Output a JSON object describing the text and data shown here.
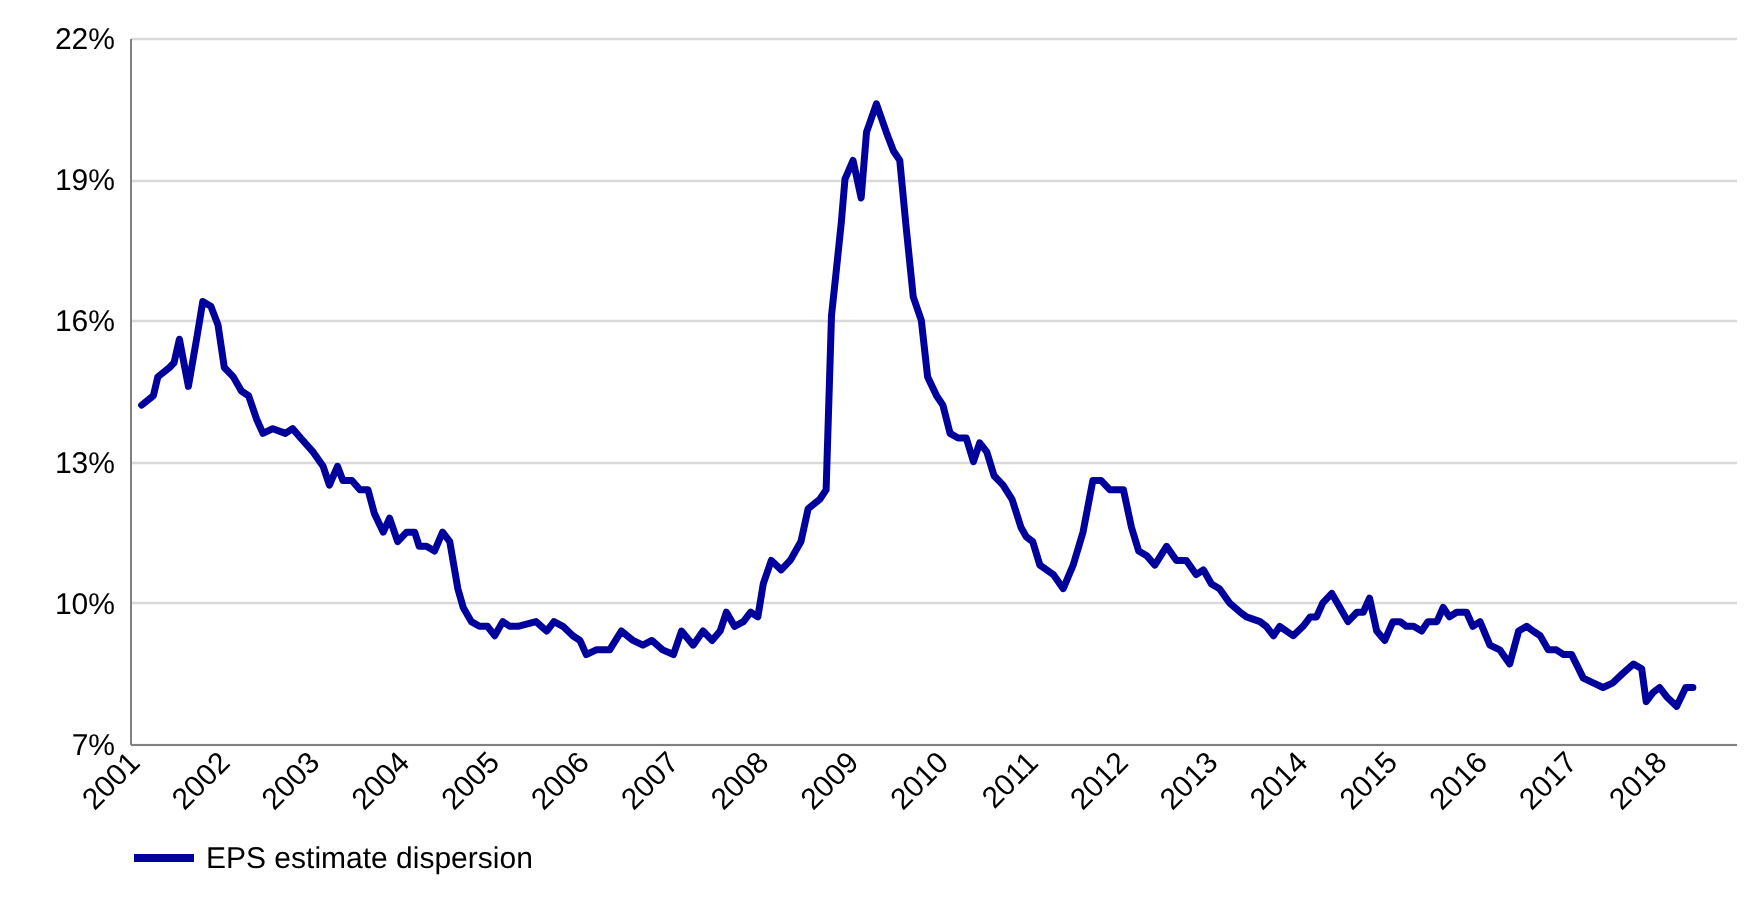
{
  "chart_data": {
    "type": "line",
    "x": [
      2001.09,
      2001.22,
      2001.27,
      2001.4,
      2001.45,
      2001.51,
      2001.61,
      2001.71,
      2001.77,
      2001.86,
      2001.94,
      2002.01,
      2002.11,
      2002.2,
      2002.28,
      2002.37,
      2002.44,
      2002.55,
      2002.69,
      2002.77,
      2002.86,
      2003.0,
      2003.11,
      2003.18,
      2003.27,
      2003.33,
      2003.43,
      2003.52,
      2003.61,
      2003.68,
      2003.78,
      2003.85,
      2003.94,
      2004.04,
      2004.13,
      2004.18,
      2004.26,
      2004.35,
      2004.44,
      2004.52,
      2004.61,
      2004.67,
      2004.76,
      2004.85,
      2004.94,
      2005.02,
      2005.11,
      2005.19,
      2005.28,
      2005.48,
      2005.6,
      2005.68,
      2005.78,
      2005.89,
      2005.97,
      2006.04,
      2006.15,
      2006.3,
      2006.43,
      2006.56,
      2006.67,
      2006.77,
      2006.89,
      2007.01,
      2007.1,
      2007.23,
      2007.34,
      2007.44,
      2007.53,
      2007.6,
      2007.69,
      2007.79,
      2007.87,
      2007.95,
      2008.01,
      2008.1,
      2008.21,
      2008.31,
      2008.43,
      2008.51,
      2008.64,
      2008.71,
      2008.77,
      2008.82,
      2008.88,
      2008.92,
      2009.01,
      2009.1,
      2009.16,
      2009.27,
      2009.38,
      2009.46,
      2009.53,
      2009.6,
      2009.68,
      2009.77,
      2009.84,
      2009.94,
      2010.01,
      2010.09,
      2010.18,
      2010.27,
      2010.35,
      2010.42,
      2010.5,
      2010.58,
      2010.68,
      2010.78,
      2010.88,
      2010.94,
      2011.01,
      2011.09,
      2011.24,
      2011.35,
      2011.46,
      2011.57,
      2011.68,
      2011.77,
      2011.87,
      2012.02,
      2012.11,
      2012.19,
      2012.28,
      2012.37,
      2012.5,
      2012.61,
      2012.72,
      2012.83,
      2012.91,
      2013.0,
      2013.09,
      2013.2,
      2013.32,
      2013.39,
      2013.54,
      2013.61,
      2013.69,
      2013.76,
      2013.91,
      2014.02,
      2014.1,
      2014.17,
      2014.24,
      2014.34,
      2014.43,
      2014.52,
      2014.62,
      2014.69,
      2014.76,
      2014.84,
      2014.93,
      2015.02,
      2015.1,
      2015.17,
      2015.25,
      2015.34,
      2015.41,
      2015.51,
      2015.58,
      2015.65,
      2015.73,
      2015.84,
      2015.91,
      2015.99,
      2016.1,
      2016.21,
      2016.32,
      2016.42,
      2016.51,
      2016.58,
      2016.66,
      2016.75,
      2016.84,
      2016.92,
      2017.01,
      2017.14,
      2017.25,
      2017.36,
      2017.47,
      2017.58,
      2017.7,
      2017.79,
      2017.84,
      2017.92,
      2017.99,
      2018.07,
      2018.18,
      2018.28,
      2018.36
    ],
    "series": [
      {
        "name": "EPS estimate dispersion",
        "color": "#00009c",
        "values": [
          14.2,
          14.4,
          14.8,
          15.0,
          15.1,
          15.6,
          14.6,
          15.7,
          16.4,
          16.3,
          15.9,
          15.0,
          14.8,
          14.5,
          14.4,
          13.9,
          13.6,
          13.7,
          13.6,
          13.7,
          13.5,
          13.2,
          12.9,
          12.5,
          12.9,
          12.6,
          12.6,
          12.4,
          12.4,
          11.9,
          11.5,
          11.8,
          11.3,
          11.5,
          11.5,
          11.2,
          11.2,
          11.1,
          11.5,
          11.3,
          10.3,
          9.9,
          9.6,
          9.5,
          9.5,
          9.3,
          9.6,
          9.5,
          9.5,
          9.6,
          9.4,
          9.6,
          9.5,
          9.3,
          9.2,
          8.9,
          9.0,
          9.0,
          9.4,
          9.2,
          9.1,
          9.2,
          9.0,
          8.9,
          9.4,
          9.1,
          9.4,
          9.2,
          9.4,
          9.8,
          9.5,
          9.6,
          9.8,
          9.7,
          10.4,
          10.9,
          10.7,
          10.9,
          11.3,
          12.0,
          12.2,
          12.4,
          16.1,
          17.0,
          18.1,
          19.0,
          19.4,
          18.6,
          20.0,
          20.6,
          20.0,
          19.6,
          19.4,
          18.0,
          16.5,
          16.0,
          14.8,
          14.4,
          14.2,
          13.6,
          13.5,
          13.5,
          13.0,
          13.4,
          13.2,
          12.7,
          12.5,
          12.2,
          11.6,
          11.4,
          11.3,
          10.8,
          10.6,
          10.3,
          10.8,
          11.5,
          12.6,
          12.6,
          12.4,
          12.4,
          11.6,
          11.1,
          11.0,
          10.8,
          11.2,
          10.9,
          10.9,
          10.6,
          10.7,
          10.4,
          10.3,
          10.0,
          9.8,
          9.7,
          9.6,
          9.5,
          9.3,
          9.5,
          9.3,
          9.5,
          9.7,
          9.7,
          10.0,
          10.2,
          9.9,
          9.6,
          9.8,
          9.8,
          10.1,
          9.4,
          9.2,
          9.6,
          9.6,
          9.5,
          9.5,
          9.4,
          9.6,
          9.6,
          9.9,
          9.7,
          9.8,
          9.8,
          9.5,
          9.6,
          9.1,
          9.0,
          8.7,
          9.4,
          9.5,
          9.4,
          9.3,
          9.0,
          9.0,
          8.9,
          8.9,
          8.4,
          8.3,
          8.2,
          8.3,
          8.5,
          8.7,
          8.6,
          7.9,
          8.1,
          8.2,
          8.0,
          7.8,
          8.2,
          8.2
        ]
      }
    ],
    "xlim": [
      2000.96,
      2018.84
    ],
    "xticks": [
      2001,
      2002,
      2003,
      2004,
      2005,
      2006,
      2007,
      2008,
      2009,
      2010,
      2011,
      2012,
      2013,
      2014,
      2015,
      2016,
      2017,
      2018
    ],
    "ylim": [
      7,
      22
    ],
    "yticks": [
      {
        "value": 7,
        "label": "7%"
      },
      {
        "value": 10,
        "label": "10%"
      },
      {
        "value": 13,
        "label": "13%"
      },
      {
        "value": 16,
        "label": "16%"
      },
      {
        "value": 19,
        "label": "19%"
      },
      {
        "value": 22,
        "label": "22%"
      }
    ],
    "grid": "y",
    "legend": "bottom",
    "line_style": "solid",
    "marker": "none"
  }
}
